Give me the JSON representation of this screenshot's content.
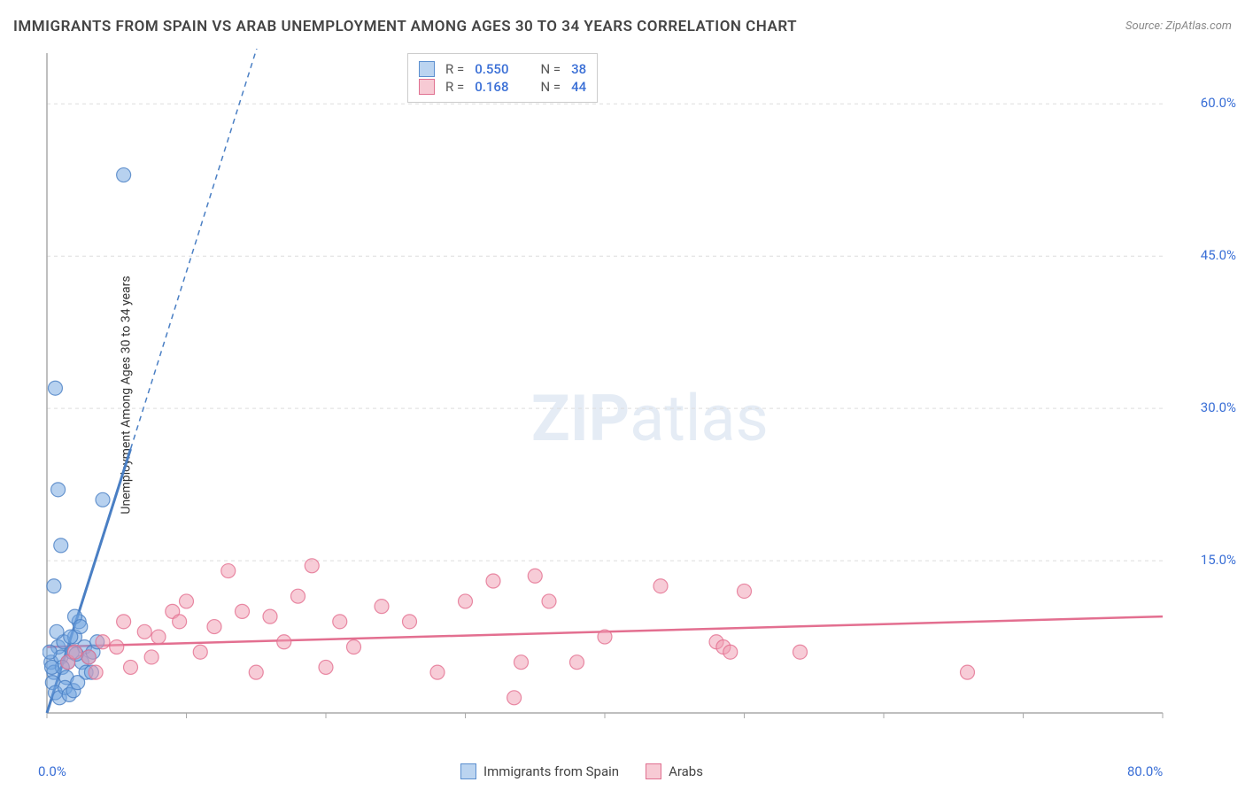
{
  "title": "IMMIGRANTS FROM SPAIN VS ARAB UNEMPLOYMENT AMONG AGES 30 TO 34 YEARS CORRELATION CHART",
  "source": "Source: ZipAtlas.com",
  "watermark_main": "ZIP",
  "watermark_sub": "atlas",
  "chart": {
    "type": "scatter",
    "background_color": "#ffffff",
    "grid_color": "#dddddd",
    "axis_color": "#aaaaaa",
    "ylabel": "Unemployment Among Ages 30 to 34 years",
    "ylabel_fontsize": 14,
    "ylabel_color": "#333333",
    "xlim": [
      0,
      80
    ],
    "ylim": [
      0,
      65
    ],
    "x_ticks": [
      0,
      10,
      20,
      30,
      40,
      50,
      60,
      70,
      80
    ],
    "x_tick_labels": {
      "0": "0.0%",
      "80": "80.0%"
    },
    "y_ticks": [
      15,
      30,
      45,
      60
    ],
    "y_tick_labels": {
      "15": "15.0%",
      "30": "30.0%",
      "45": "45.0%",
      "60": "60.0%"
    },
    "tick_color": "#3a6fd6",
    "tick_fontsize": 15,
    "marker_radius": 8,
    "marker_opacity": 0.5,
    "series": [
      {
        "name": "Immigrants from Spain",
        "color": "#6fa3df",
        "stroke": "#4a7fc4",
        "R": "0.550",
        "N": "38",
        "trend": {
          "x1": 0,
          "y1": 0,
          "x2": 6,
          "y2": 26,
          "dash_to_x": 17,
          "dash_to_y": 74,
          "width": 3
        },
        "points": [
          [
            0.3,
            5.0
          ],
          [
            0.5,
            4.0
          ],
          [
            0.8,
            6.5
          ],
          [
            1.0,
            5.5
          ],
          [
            1.2,
            7.0
          ],
          [
            0.4,
            3.0
          ],
          [
            0.6,
            2.0
          ],
          [
            1.5,
            5.0
          ],
          [
            1.8,
            6.0
          ],
          [
            2.0,
            7.5
          ],
          [
            2.3,
            9.0
          ],
          [
            0.2,
            6.0
          ],
          [
            0.7,
            8.0
          ],
          [
            1.1,
            4.5
          ],
          [
            1.4,
            3.5
          ],
          [
            2.5,
            5.0
          ],
          [
            2.8,
            4.0
          ],
          [
            0.9,
            1.5
          ],
          [
            1.3,
            2.5
          ],
          [
            1.6,
            1.8
          ],
          [
            1.9,
            2.2
          ],
          [
            2.2,
            3.0
          ],
          [
            0.5,
            12.5
          ],
          [
            1.0,
            16.5
          ],
          [
            0.8,
            22.0
          ],
          [
            2.0,
            9.5
          ],
          [
            2.4,
            8.5
          ],
          [
            2.7,
            6.5
          ],
          [
            3.0,
            5.5
          ],
          [
            3.3,
            6.0
          ],
          [
            3.6,
            7.0
          ],
          [
            0.6,
            32.0
          ],
          [
            4.0,
            21.0
          ],
          [
            5.5,
            53.0
          ],
          [
            3.2,
            4.0
          ],
          [
            1.7,
            7.5
          ],
          [
            2.1,
            5.8
          ],
          [
            0.35,
            4.5
          ]
        ]
      },
      {
        "name": "Arabs",
        "color": "#f09ab0",
        "stroke": "#e36f90",
        "R": "0.168",
        "N": "44",
        "trend": {
          "x1": 0,
          "y1": 6.5,
          "x2": 80,
          "y2": 9.5,
          "width": 2.5
        },
        "points": [
          [
            1.5,
            5.0
          ],
          [
            2.0,
            6.0
          ],
          [
            3.0,
            5.5
          ],
          [
            4.0,
            7.0
          ],
          [
            5.0,
            6.5
          ],
          [
            6.0,
            4.5
          ],
          [
            7.0,
            8.0
          ],
          [
            8.0,
            7.5
          ],
          [
            9.0,
            10.0
          ],
          [
            9.5,
            9.0
          ],
          [
            10.0,
            11.0
          ],
          [
            11.0,
            6.0
          ],
          [
            12.0,
            8.5
          ],
          [
            13.0,
            14.0
          ],
          [
            14.0,
            10.0
          ],
          [
            15.0,
            4.0
          ],
          [
            16.0,
            9.5
          ],
          [
            17.0,
            7.0
          ],
          [
            18.0,
            11.5
          ],
          [
            19.0,
            14.5
          ],
          [
            20.0,
            4.5
          ],
          [
            21.0,
            9.0
          ],
          [
            22.0,
            6.5
          ],
          [
            24.0,
            10.5
          ],
          [
            26.0,
            9.0
          ],
          [
            28.0,
            4.0
          ],
          [
            30.0,
            11.0
          ],
          [
            32.0,
            13.0
          ],
          [
            33.5,
            1.5
          ],
          [
            34.0,
            5.0
          ],
          [
            35.0,
            13.5
          ],
          [
            36.0,
            11.0
          ],
          [
            38.0,
            5.0
          ],
          [
            40.0,
            7.5
          ],
          [
            44.0,
            12.5
          ],
          [
            48.0,
            7.0
          ],
          [
            48.5,
            6.5
          ],
          [
            49.0,
            6.0
          ],
          [
            50.0,
            12.0
          ],
          [
            54.0,
            6.0
          ],
          [
            66.0,
            4.0
          ],
          [
            7.5,
            5.5
          ],
          [
            5.5,
            9.0
          ],
          [
            3.5,
            4.0
          ]
        ]
      }
    ]
  },
  "legend_top": {
    "R_label": "R =",
    "N_label": "N ="
  },
  "legend_bottom": {
    "series1": "Immigrants from Spain",
    "series2": "Arabs"
  }
}
